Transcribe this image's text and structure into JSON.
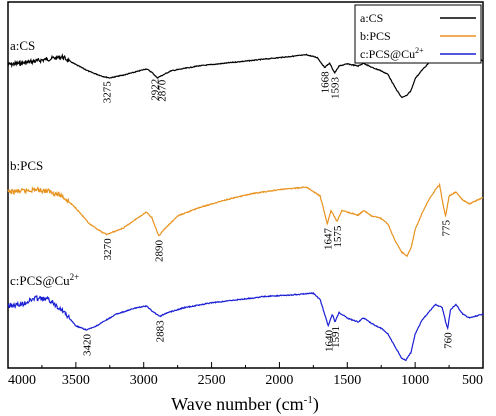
{
  "chart_data": {
    "type": "line",
    "title": "",
    "xlabel": "Wave number (cm",
    "xlabel_sup": "-1",
    "xlabel_close": ")",
    "ylabel": "",
    "xlim": [
      4000,
      500
    ],
    "x_reversed": true,
    "x_ticks": [
      "4000",
      "3500",
      "3000",
      "2500",
      "2000",
      "1500",
      "1000",
      "500"
    ],
    "grid": false,
    "legend_position": "top-right",
    "series": [
      {
        "name": "a:CS",
        "label": "a:CS",
        "color": "#000000",
        "points": [
          [
            4000,
            0.28
          ],
          [
            3900,
            0.26
          ],
          [
            3800,
            0.23
          ],
          [
            3700,
            0.2
          ],
          [
            3600,
            0.17
          ],
          [
            3500,
            0.28
          ],
          [
            3400,
            0.38
          ],
          [
            3300,
            0.45
          ],
          [
            3250,
            0.47
          ],
          [
            3150,
            0.43
          ],
          [
            3050,
            0.38
          ],
          [
            2980,
            0.34
          ],
          [
            2940,
            0.39
          ],
          [
            2900,
            0.47
          ],
          [
            2870,
            0.44
          ],
          [
            2800,
            0.37
          ],
          [
            2600,
            0.3
          ],
          [
            2400,
            0.26
          ],
          [
            2200,
            0.22
          ],
          [
            2000,
            0.18
          ],
          [
            1800,
            0.14
          ],
          [
            1720,
            0.18
          ],
          [
            1668,
            0.32
          ],
          [
            1630,
            0.26
          ],
          [
            1593,
            0.4
          ],
          [
            1560,
            0.3
          ],
          [
            1500,
            0.27
          ],
          [
            1420,
            0.3
          ],
          [
            1380,
            0.26
          ],
          [
            1320,
            0.32
          ],
          [
            1260,
            0.36
          ],
          [
            1200,
            0.42
          ],
          [
            1150,
            0.6
          ],
          [
            1100,
            0.75
          ],
          [
            1060,
            0.72
          ],
          [
            1030,
            0.65
          ],
          [
            1000,
            0.48
          ],
          [
            950,
            0.36
          ],
          [
            900,
            0.26
          ],
          [
            850,
            0.2
          ],
          [
            800,
            0.15
          ],
          [
            750,
            0.16
          ],
          [
            700,
            0.2
          ],
          [
            650,
            0.14
          ],
          [
            600,
            0.18
          ],
          [
            500,
            0.22
          ]
        ],
        "annotations": [
          {
            "x": 3275,
            "label": "3275"
          },
          {
            "x": 2922,
            "label": "2922"
          },
          {
            "x": 2870,
            "label": "2870"
          },
          {
            "x": 1668,
            "label": "1668"
          },
          {
            "x": 1593,
            "label": "1593"
          }
        ]
      },
      {
        "name": "b:PCS",
        "label": "b:PCS",
        "color": "#e8921e",
        "points": [
          [
            4000,
            0.15
          ],
          [
            3900,
            0.14
          ],
          [
            3800,
            0.12
          ],
          [
            3700,
            0.14
          ],
          [
            3600,
            0.2
          ],
          [
            3500,
            0.35
          ],
          [
            3400,
            0.55
          ],
          [
            3300,
            0.66
          ],
          [
            3270,
            0.68
          ],
          [
            3150,
            0.6
          ],
          [
            3050,
            0.48
          ],
          [
            2980,
            0.4
          ],
          [
            2940,
            0.47
          ],
          [
            2890,
            0.7
          ],
          [
            2850,
            0.62
          ],
          [
            2750,
            0.45
          ],
          [
            2600,
            0.35
          ],
          [
            2400,
            0.25
          ],
          [
            2200,
            0.17
          ],
          [
            2000,
            0.12
          ],
          [
            1800,
            0.09
          ],
          [
            1700,
            0.2
          ],
          [
            1647,
            0.55
          ],
          [
            1620,
            0.38
          ],
          [
            1575,
            0.52
          ],
          [
            1540,
            0.38
          ],
          [
            1500,
            0.4
          ],
          [
            1420,
            0.44
          ],
          [
            1380,
            0.38
          ],
          [
            1320,
            0.45
          ],
          [
            1250,
            0.48
          ],
          [
            1200,
            0.55
          ],
          [
            1150,
            0.75
          ],
          [
            1100,
            0.9
          ],
          [
            1060,
            0.95
          ],
          [
            1030,
            0.85
          ],
          [
            1000,
            0.62
          ],
          [
            950,
            0.42
          ],
          [
            900,
            0.25
          ],
          [
            850,
            0.12
          ],
          [
            820,
            0.06
          ],
          [
            790,
            0.35
          ],
          [
            775,
            0.45
          ],
          [
            750,
            0.2
          ],
          [
            700,
            0.15
          ],
          [
            650,
            0.25
          ],
          [
            600,
            0.3
          ],
          [
            500,
            0.22
          ]
        ],
        "annotations": [
          {
            "x": 3270,
            "label": "3270"
          },
          {
            "x": 2890,
            "label": "2890"
          },
          {
            "x": 1647,
            "label": "1647"
          },
          {
            "x": 1575,
            "label": "1575"
          },
          {
            "x": 775,
            "label": "775"
          }
        ]
      },
      {
        "name": "c:PCS@Cu",
        "label": "c:PCS@Cu",
        "label_sup": "2+",
        "color": "#1a1fd4",
        "points": [
          [
            4000,
            0.2
          ],
          [
            3900,
            0.18
          ],
          [
            3800,
            0.1
          ],
          [
            3700,
            0.12
          ],
          [
            3600,
            0.25
          ],
          [
            3500,
            0.45
          ],
          [
            3420,
            0.5
          ],
          [
            3350,
            0.45
          ],
          [
            3200,
            0.3
          ],
          [
            3050,
            0.22
          ],
          [
            2980,
            0.2
          ],
          [
            2940,
            0.26
          ],
          [
            2883,
            0.33
          ],
          [
            2820,
            0.28
          ],
          [
            2700,
            0.22
          ],
          [
            2500,
            0.16
          ],
          [
            2300,
            0.12
          ],
          [
            2100,
            0.08
          ],
          [
            1900,
            0.06
          ],
          [
            1750,
            0.04
          ],
          [
            1700,
            0.12
          ],
          [
            1640,
            0.45
          ],
          [
            1610,
            0.3
          ],
          [
            1591,
            0.4
          ],
          [
            1560,
            0.28
          ],
          [
            1500,
            0.35
          ],
          [
            1420,
            0.4
          ],
          [
            1380,
            0.35
          ],
          [
            1320,
            0.42
          ],
          [
            1250,
            0.48
          ],
          [
            1200,
            0.55
          ],
          [
            1150,
            0.7
          ],
          [
            1100,
            0.85
          ],
          [
            1070,
            0.88
          ],
          [
            1030,
            0.78
          ],
          [
            1000,
            0.55
          ],
          [
            950,
            0.38
          ],
          [
            900,
            0.28
          ],
          [
            850,
            0.18
          ],
          [
            800,
            0.22
          ],
          [
            775,
            0.4
          ],
          [
            760,
            0.48
          ],
          [
            740,
            0.25
          ],
          [
            700,
            0.18
          ],
          [
            650,
            0.3
          ],
          [
            600,
            0.35
          ],
          [
            500,
            0.3
          ]
        ],
        "annotations": [
          {
            "x": 3420,
            "label": "3420"
          },
          {
            "x": 2883,
            "label": "2883"
          },
          {
            "x": 1640,
            "label": "1640"
          },
          {
            "x": 1591,
            "label": "1591"
          },
          {
            "x": 760,
            "label": "760"
          }
        ]
      }
    ]
  }
}
